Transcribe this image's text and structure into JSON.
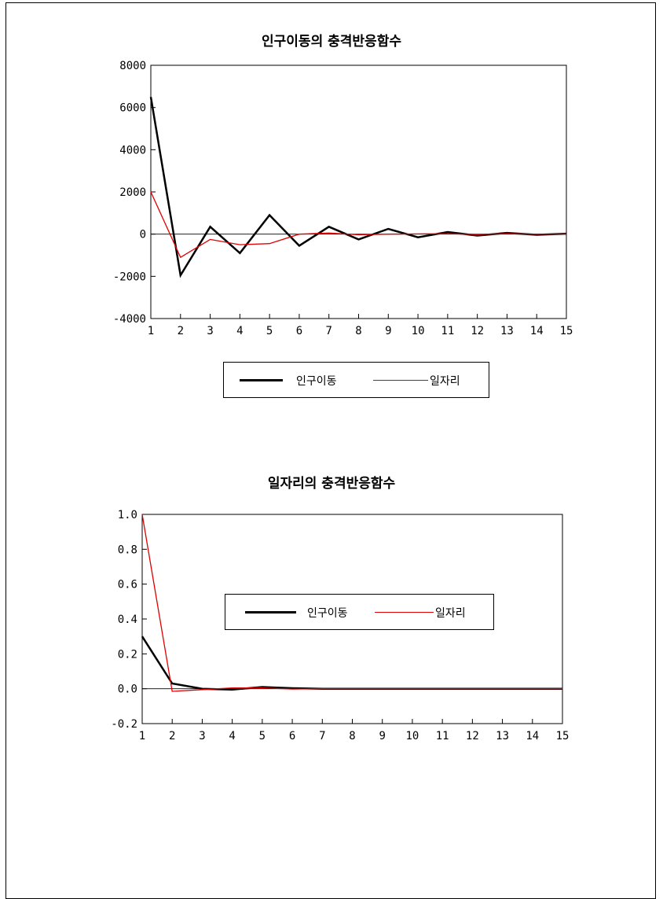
{
  "chart_data": [
    {
      "type": "line",
      "title": "인구이동의 충격반응함수",
      "categories": [
        "1",
        "2",
        "3",
        "4",
        "5",
        "6",
        "7",
        "8",
        "9",
        "10",
        "11",
        "12",
        "13",
        "14",
        "15"
      ],
      "x": [
        1,
        2,
        3,
        4,
        5,
        6,
        7,
        8,
        9,
        10,
        11,
        12,
        13,
        14,
        15
      ],
      "ylim": [
        -4000,
        8000
      ],
      "yticks": [
        8000,
        6000,
        4000,
        2000,
        0,
        -2000,
        -4000
      ],
      "ytick_labels": [
        "8000",
        "6000",
        "4000",
        "2000",
        "0",
        "-2000",
        "-4000"
      ],
      "zero_line": true,
      "grid": false,
      "legend_position": "bottom",
      "series": [
        {
          "name": "인구이동",
          "color": "#000000",
          "values": [
            6500,
            -1950,
            350,
            -900,
            900,
            -550,
            350,
            -250,
            250,
            -150,
            100,
            -70,
            60,
            -30,
            20
          ]
        },
        {
          "name": "일자리",
          "color": "#e00000",
          "values": [
            2000,
            -1100,
            -250,
            -500,
            -450,
            0,
            50,
            -30,
            0,
            10,
            20,
            -20,
            30,
            -10,
            10
          ]
        }
      ]
    },
    {
      "type": "line",
      "title": "일자리의 충격반응함수",
      "categories": [
        "1",
        "2",
        "3",
        "4",
        "5",
        "6",
        "7",
        "8",
        "9",
        "10",
        "11",
        "12",
        "13",
        "14",
        "15"
      ],
      "x": [
        1,
        2,
        3,
        4,
        5,
        6,
        7,
        8,
        9,
        10,
        11,
        12,
        13,
        14,
        15
      ],
      "ylim": [
        -0.2,
        1.0
      ],
      "yticks": [
        1.0,
        0.8,
        0.6,
        0.4,
        0.2,
        0.0,
        -0.2
      ],
      "ytick_labels": [
        "1.0",
        "0.8",
        "0.6",
        "0.4",
        "0.2",
        "0.0",
        "-0.2"
      ],
      "zero_line": true,
      "grid": false,
      "legend_position": "bottom",
      "series": [
        {
          "name": "인구이동",
          "color": "#000000",
          "values": [
            0.3,
            0.03,
            0.0,
            -0.005,
            0.01,
            0.003,
            0.0,
            0.0,
            0.0,
            0.0,
            0.0,
            0.0,
            0.0,
            0.0,
            0.0
          ]
        },
        {
          "name": "일자리",
          "color": "#e00000",
          "values": [
            1.0,
            -0.015,
            -0.005,
            0.005,
            0.005,
            -0.002,
            0.0,
            0.0,
            0.0,
            0.0,
            0.0,
            0.0,
            0.0,
            0.0,
            0.0
          ]
        }
      ]
    }
  ]
}
